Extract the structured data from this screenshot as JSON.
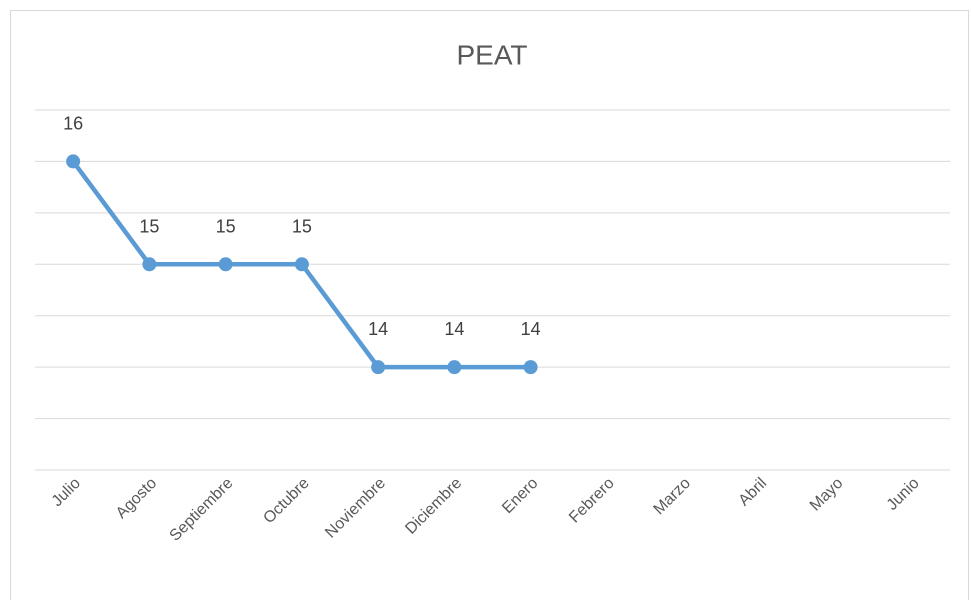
{
  "chart_data": {
    "type": "line",
    "title": "PEAT",
    "categories": [
      "Julio",
      "Agosto",
      "Septiembre",
      "Octubre",
      "Noviembre",
      "Diciembre",
      "Enero",
      "Febrero",
      "Marzo",
      "Abril",
      "Mayo",
      "Junio"
    ],
    "series": [
      {
        "name": "PEAT",
        "color": "#5b9bd5",
        "values": [
          16,
          15,
          15,
          15,
          14,
          14,
          14,
          null,
          null,
          null,
          null,
          null
        ]
      }
    ],
    "ylim": [
      13,
      16.5
    ],
    "yticks": [
      13,
      13.5,
      14,
      14.5,
      15,
      15.5,
      16,
      16.5
    ],
    "grid": true,
    "legend": false
  }
}
